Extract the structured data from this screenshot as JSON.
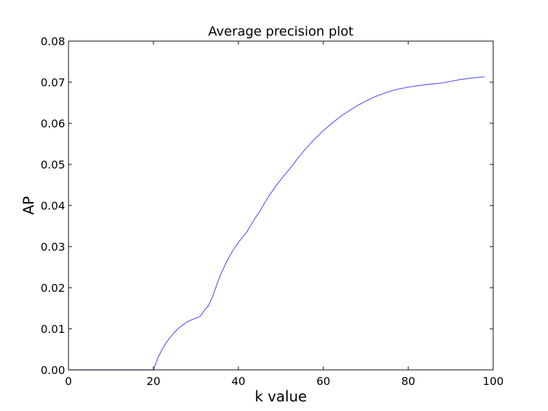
{
  "chart_data": {
    "type": "line",
    "title": "Average precision plot",
    "xlabel": "k value",
    "ylabel": "AP",
    "xlim": [
      0,
      100
    ],
    "ylim": [
      0,
      0.08
    ],
    "xticks": [
      0,
      20,
      40,
      60,
      80,
      100
    ],
    "xtick_labels": [
      "0",
      "20",
      "40",
      "60",
      "80",
      "100"
    ],
    "yticks": [
      0,
      0.01,
      0.02,
      0.03,
      0.04,
      0.05,
      0.06,
      0.07,
      0.08
    ],
    "ytick_labels": [
      "0.00",
      "0.01",
      "0.02",
      "0.03",
      "0.04",
      "0.05",
      "0.06",
      "0.07",
      "0.08"
    ],
    "grid": false,
    "series": [
      {
        "color": "#5b5bf5",
        "x": [
          0,
          20,
          21,
          22,
          23,
          24,
          25,
          26,
          27,
          28,
          29,
          30,
          31,
          32,
          33,
          34,
          35,
          36,
          37,
          38,
          39,
          40,
          41,
          42,
          43,
          44,
          45,
          46,
          47,
          48,
          49,
          50,
          51,
          52,
          54,
          56,
          58,
          60,
          62,
          64,
          66,
          68,
          70,
          72,
          74,
          76,
          78,
          80,
          82,
          84,
          86,
          88,
          90,
          92,
          94,
          96,
          98
        ],
        "y": [
          0,
          0,
          0.0028,
          0.0049,
          0.0066,
          0.008,
          0.0092,
          0.0102,
          0.011,
          0.0117,
          0.0122,
          0.0126,
          0.013,
          0.0145,
          0.0157,
          0.018,
          0.021,
          0.0236,
          0.0258,
          0.0278,
          0.0295,
          0.031,
          0.0323,
          0.0336,
          0.0353,
          0.037,
          0.0385,
          0.0403,
          0.042,
          0.0435,
          0.045,
          0.0463,
          0.0476,
          0.0488,
          0.0515,
          0.054,
          0.0562,
          0.0582,
          0.06,
          0.0616,
          0.063,
          0.0643,
          0.0654,
          0.0664,
          0.0672,
          0.0679,
          0.0684,
          0.0688,
          0.0691,
          0.0694,
          0.0696,
          0.0698,
          0.0702,
          0.0706,
          0.0709,
          0.0711,
          0.0713
        ]
      }
    ]
  }
}
